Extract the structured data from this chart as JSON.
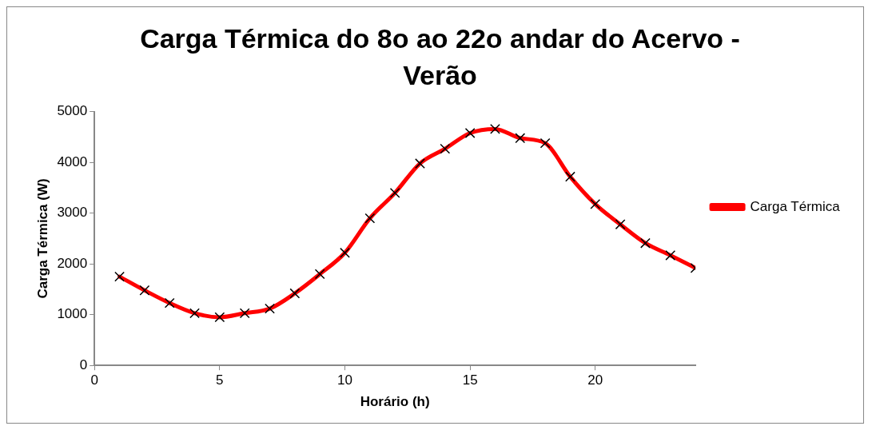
{
  "chart_data": {
    "type": "line",
    "title": "Carga Térmica do 8o ao 22o andar do Acervo - Verão",
    "xlabel": "Horário (h)",
    "ylabel": "Carga Térmica (W)",
    "x": [
      1,
      2,
      3,
      4,
      5,
      6,
      7,
      8,
      9,
      10,
      11,
      12,
      13,
      14,
      15,
      16,
      17,
      18,
      19,
      20,
      21,
      22,
      23,
      24
    ],
    "series": [
      {
        "name": "Carga Térmica",
        "color": "#ff0000",
        "values": [
          1750,
          1480,
          1230,
          1030,
          950,
          1030,
          1120,
          1420,
          1800,
          2220,
          2900,
          3400,
          3980,
          4270,
          4580,
          4660,
          4480,
          4380,
          3720,
          3180,
          2780,
          2410,
          2170,
          1920
        ]
      }
    ],
    "xlim": [
      0,
      24
    ],
    "xticks": [
      0,
      5,
      10,
      15,
      20
    ],
    "ylim": [
      0,
      5000
    ],
    "yticks": [
      0,
      1000,
      2000,
      3000,
      4000,
      5000
    ],
    "grid": false,
    "legend": "right",
    "marker": "cross",
    "line_style": "solid"
  }
}
